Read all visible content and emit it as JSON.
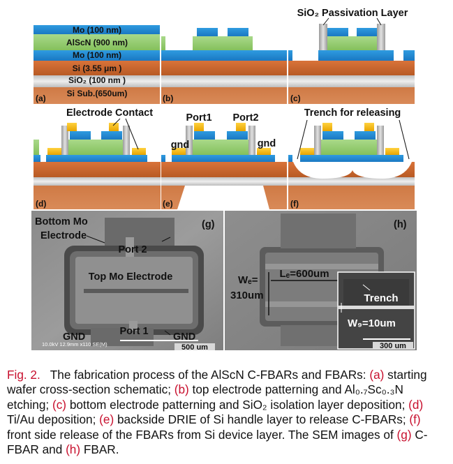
{
  "panels": {
    "a": {
      "tag": "(a)",
      "layers": [
        "Mo (100 nm)",
        "AlScN (900 nm)",
        "Mo (100 nm)",
        "Si (3.55 μm )",
        "SiO₂ (100 nm )",
        "Si Sub.(650um)"
      ]
    },
    "b": {
      "tag": "(b)"
    },
    "c": {
      "tag": "(c)",
      "callout": "SiO₂ Passivation Layer"
    },
    "d": {
      "tag": "(d)",
      "callout": "Electrode Contact"
    },
    "e": {
      "tag": "(e)",
      "port1": "Port1",
      "port2": "Port2",
      "gnd_left": "gnd",
      "gnd_right": "gnd"
    },
    "f": {
      "tag": "(f)",
      "callout": "Trench for releasing"
    },
    "g": {
      "tag": "(g)",
      "bottom_electrode_1": "Bottom Mo",
      "bottom_electrode_2": "Electrode",
      "port2": "Port 2",
      "top_electrode": "Top Mo Electrode",
      "gnd_left": "GND",
      "port1": "Port 1",
      "gnd_right": "GND",
      "microscope_info": "10.0kV 12.9mm x110 SE(M)",
      "scale": "500 um"
    },
    "h": {
      "tag": "(h)",
      "le": "Lₑ=600um",
      "we_1": "Wₑ=",
      "we_2": "310um",
      "trench": "Trench",
      "wg": "W₉=10um",
      "scale": "300 um"
    }
  },
  "caption": {
    "fig": "Fig. 2.",
    "text_1": "The fabrication process of the AlScN C-FBARs and FBARs:",
    "a": "(a)",
    "a_text": "starting wafer cross-section schematic;",
    "b": "(b)",
    "b_text": "top electrode patterning",
    "b_text2": "and Al₀.₇Sc₀.₃N etching;",
    "c": "(c)",
    "c_text": "bottom electrode patterning and SiO₂",
    "c_text2": "isolation layer deposition;",
    "d": "(d)",
    "d_text": "Ti/Au deposition;",
    "e": "(e)",
    "e_text": "backside DRIE of Si",
    "e_text2": "handle layer to release C-FBARs;",
    "f": "(f)",
    "f_text": "front side release of the FBARs",
    "f_text2": "from Si device layer. The SEM images of",
    "g": "(g)",
    "g_text": "C-FBAR and",
    "h": "(h)",
    "h_text": "FBAR."
  }
}
